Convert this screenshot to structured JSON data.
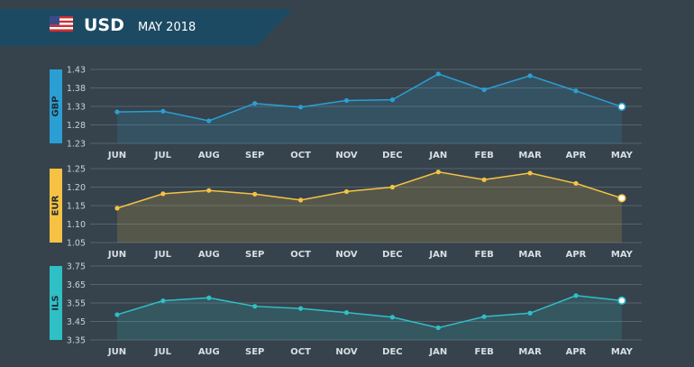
{
  "header": {
    "currency": "USD",
    "date": "MAY 2018",
    "flag_icon": "us-flag-icon",
    "band_color": "#1d4a63"
  },
  "chart_data": [
    {
      "type": "line",
      "series": [
        {
          "name": "GBP",
          "values": [
            1.315,
            1.317,
            1.291,
            1.338,
            1.328,
            1.346,
            1.348,
            1.418,
            1.375,
            1.413,
            1.372,
            1.329
          ]
        }
      ],
      "categories": [
        "JUN",
        "JUL",
        "AUG",
        "SEP",
        "OCT",
        "NOV",
        "DEC",
        "JAN",
        "FEB",
        "MAR",
        "APR",
        "MAY"
      ],
      "ylabel": "GBP",
      "ylim": [
        1.23,
        1.43
      ],
      "yticks": [
        "1.23",
        "1.28",
        "1.33",
        "1.38",
        "1.43"
      ],
      "color": "#2b9fd3",
      "grid": true
    },
    {
      "type": "line",
      "series": [
        {
          "name": "EUR",
          "values": [
            1.143,
            1.182,
            1.191,
            1.181,
            1.165,
            1.188,
            1.2,
            1.241,
            1.22,
            1.238,
            1.21,
            1.17
          ]
        }
      ],
      "categories": [
        "JUN",
        "JUL",
        "AUG",
        "SEP",
        "OCT",
        "NOV",
        "DEC",
        "JAN",
        "FEB",
        "MAR",
        "APR",
        "MAY"
      ],
      "ylabel": "EUR",
      "ylim": [
        1.05,
        1.25
      ],
      "yticks": [
        "1.05",
        "1.10",
        "1.15",
        "1.20",
        "1.25"
      ],
      "color": "#f6c243",
      "grid": true
    },
    {
      "type": "line",
      "series": [
        {
          "name": "ILS",
          "values": [
            3.487,
            3.562,
            3.578,
            3.532,
            3.52,
            3.498,
            3.473,
            3.416,
            3.476,
            3.495,
            3.59,
            3.563
          ]
        }
      ],
      "categories": [
        "JUN",
        "JUL",
        "AUG",
        "SEP",
        "OCT",
        "NOV",
        "DEC",
        "JAN",
        "FEB",
        "MAR",
        "APR",
        "MAY"
      ],
      "ylabel": "ILS",
      "ylim": [
        3.35,
        3.75
      ],
      "yticks": [
        "3.35",
        "3.45",
        "3.55",
        "3.65",
        "3.75"
      ],
      "color": "#2fc0c6",
      "grid": true
    }
  ]
}
